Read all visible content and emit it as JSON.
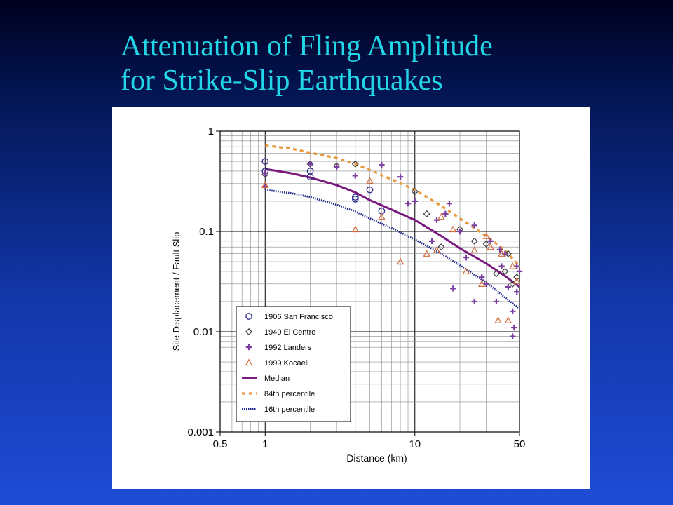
{
  "slide": {
    "title_line1": "Attenuation of Fling Amplitude",
    "title_line2": "for Strike-Slip Earthquakes"
  },
  "colors": {
    "background_top": "#00001e",
    "background_bottom": "#1f4cd6",
    "title": "#22d6e8",
    "san_francisco": "#2b2b8a",
    "el_centro": "#333333",
    "landers": "#7b3fa0",
    "kocaeli": "#d2693a",
    "median": "#7a1a7f",
    "p84": "#e89a3c",
    "p16": "#1f2a8a"
  },
  "chart_data": {
    "type": "scatter",
    "title": "",
    "xlabel": "Distance (km)",
    "ylabel": "Site Displacement / Fault Slip",
    "x_scale": "log",
    "y_scale": "log",
    "xlim": [
      0.5,
      50
    ],
    "ylim": [
      0.001,
      1
    ],
    "x_ticks": [
      {
        "v": 0.5,
        "label": "0.5"
      },
      {
        "v": 1,
        "label": "1"
      },
      {
        "v": 10,
        "label": "10"
      },
      {
        "v": 50,
        "label": "50"
      }
    ],
    "y_ticks": [
      {
        "v": 1,
        "label": "1"
      },
      {
        "v": 0.1,
        "label": "0.1"
      },
      {
        "v": 0.01,
        "label": "0.01"
      },
      {
        "v": 0.001,
        "label": "0.001"
      }
    ],
    "grid": true,
    "legend_position": "bottom-left",
    "series": [
      {
        "name": "1906 San Francisco",
        "marker": "circle",
        "color": "#2b2b8a",
        "points": [
          [
            1,
            0.5
          ],
          [
            1,
            0.4
          ],
          [
            2,
            0.35
          ],
          [
            2,
            0.4
          ],
          [
            4,
            0.22
          ],
          [
            4,
            0.21
          ],
          [
            6,
            0.16
          ],
          [
            5,
            0.26
          ]
        ]
      },
      {
        "name": "1940 El Centro",
        "marker": "diamond",
        "color": "#333333",
        "points": [
          [
            1,
            0.37
          ],
          [
            2,
            0.47
          ],
          [
            3,
            0.45
          ],
          [
            4,
            0.47
          ],
          [
            10,
            0.25
          ],
          [
            12,
            0.15
          ],
          [
            15,
            0.07
          ],
          [
            20,
            0.105
          ],
          [
            25,
            0.08
          ],
          [
            30,
            0.075
          ],
          [
            35,
            0.038
          ],
          [
            40,
            0.04
          ],
          [
            42,
            0.06
          ],
          [
            45,
            0.03
          ],
          [
            48,
            0.035
          ]
        ]
      },
      {
        "name": "1992 Landers",
        "marker": "cross",
        "color": "#7b3fa0",
        "points": [
          [
            1,
            0.38
          ],
          [
            1,
            0.28
          ],
          [
            2,
            0.47
          ],
          [
            3,
            0.44
          ],
          [
            4,
            0.36
          ],
          [
            6,
            0.46
          ],
          [
            8,
            0.35
          ],
          [
            9,
            0.19
          ],
          [
            10,
            0.2
          ],
          [
            13,
            0.08
          ],
          [
            14,
            0.13
          ],
          [
            16,
            0.15
          ],
          [
            17,
            0.19
          ],
          [
            18,
            0.027
          ],
          [
            20,
            0.1
          ],
          [
            22,
            0.055
          ],
          [
            25,
            0.115
          ],
          [
            25,
            0.02
          ],
          [
            28,
            0.035
          ],
          [
            30,
            0.03
          ],
          [
            32,
            0.08
          ],
          [
            35,
            0.02
          ],
          [
            37,
            0.066
          ],
          [
            38,
            0.045
          ],
          [
            40,
            0.06
          ],
          [
            42,
            0.028
          ],
          [
            45,
            0.016
          ],
          [
            45,
            0.009
          ],
          [
            46,
            0.011
          ],
          [
            48,
            0.025
          ],
          [
            48,
            0.045
          ],
          [
            50,
            0.04
          ]
        ]
      },
      {
        "name": "1999 Kocaeli",
        "marker": "triangle",
        "color": "#d2693a",
        "points": [
          [
            1,
            0.29
          ],
          [
            4,
            0.105
          ],
          [
            5,
            0.32
          ],
          [
            6,
            0.14
          ],
          [
            8,
            0.05
          ],
          [
            12,
            0.06
          ],
          [
            14,
            0.065
          ],
          [
            15,
            0.14
          ],
          [
            18,
            0.105
          ],
          [
            22,
            0.04
          ],
          [
            25,
            0.065
          ],
          [
            28,
            0.03
          ],
          [
            30,
            0.09
          ],
          [
            32,
            0.07
          ],
          [
            36,
            0.013
          ],
          [
            38,
            0.06
          ],
          [
            42,
            0.013
          ],
          [
            45,
            0.045
          ],
          [
            48,
            0.032
          ]
        ]
      }
    ],
    "curves": [
      {
        "name": "Median",
        "style": "solid",
        "color": "#7a1a7f",
        "points": [
          [
            1,
            0.42
          ],
          [
            1.5,
            0.38
          ],
          [
            2,
            0.345
          ],
          [
            3,
            0.29
          ],
          [
            4,
            0.245
          ],
          [
            5,
            0.205
          ],
          [
            7,
            0.165
          ],
          [
            10,
            0.13
          ],
          [
            15,
            0.09
          ],
          [
            20,
            0.068
          ],
          [
            30,
            0.048
          ],
          [
            40,
            0.036
          ],
          [
            50,
            0.028
          ]
        ]
      },
      {
        "name": "84th percentile",
        "style": "dashed",
        "color": "#e89a3c",
        "points": [
          [
            1,
            0.72
          ],
          [
            1.5,
            0.67
          ],
          [
            2,
            0.61
          ],
          [
            3,
            0.54
          ],
          [
            4,
            0.47
          ],
          [
            5,
            0.41
          ],
          [
            7,
            0.33
          ],
          [
            10,
            0.26
          ],
          [
            15,
            0.18
          ],
          [
            20,
            0.135
          ],
          [
            30,
            0.09
          ],
          [
            40,
            0.065
          ],
          [
            50,
            0.045
          ]
        ]
      },
      {
        "name": "16th percentile",
        "style": "dotted",
        "color": "#1f2a8a",
        "points": [
          [
            1,
            0.26
          ],
          [
            1.5,
            0.24
          ],
          [
            2,
            0.22
          ],
          [
            3,
            0.185
          ],
          [
            4,
            0.158
          ],
          [
            5,
            0.135
          ],
          [
            7,
            0.108
          ],
          [
            10,
            0.083
          ],
          [
            15,
            0.06
          ],
          [
            20,
            0.046
          ],
          [
            30,
            0.031
          ],
          [
            40,
            0.022
          ],
          [
            50,
            0.017
          ]
        ]
      }
    ]
  }
}
